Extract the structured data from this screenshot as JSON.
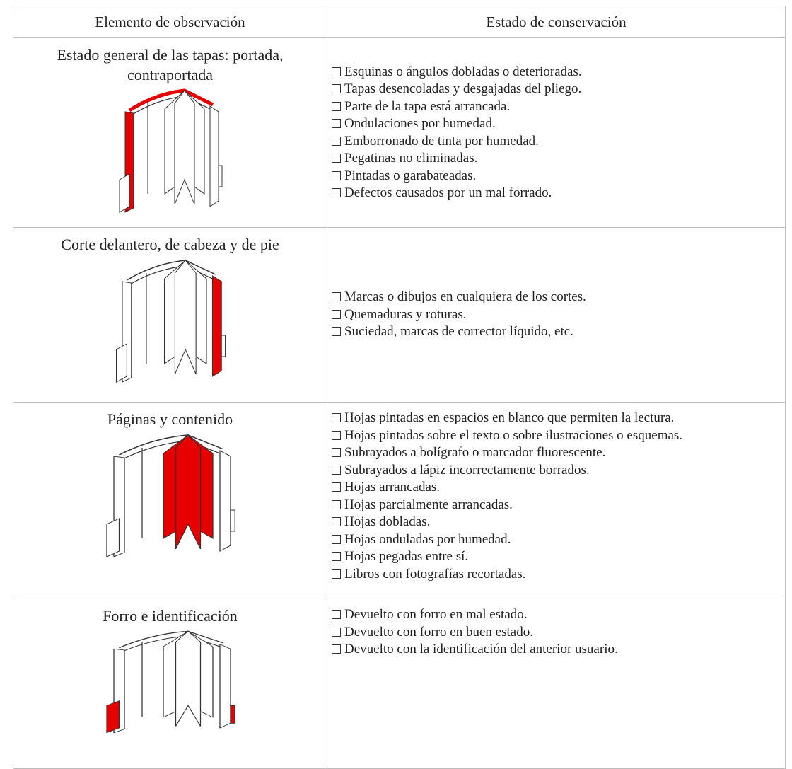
{
  "header": {
    "columns": [
      "Elemento de observación",
      "Estado de conservación"
    ]
  },
  "rows": [
    {
      "element": "Estado general de las tapas: portada, contraportada",
      "items": [
        "Esquinas o ángulos dobladas o deterioradas.",
        "Tapas desencoladas y desgajadas del pliego.",
        "Parte de la tapa está arrancada.",
        "Ondulaciones por humedad.",
        "Emborronado de tinta por humedad.",
        "Pegatinas no eliminadas.",
        "Pintadas o garabateadas.",
        "Defectos causados por un mal forrado."
      ]
    },
    {
      "element": "Corte delantero, de cabeza y de pie",
      "items": [
        "Marcas o dibujos en cualquiera de los cortes.",
        "Quemaduras y roturas.",
        "Suciedad, marcas de corrector líquido, etc."
      ]
    },
    {
      "element": "Páginas y contenido",
      "items": [
        "Hojas pintadas en espacios en blanco que permiten la lectura.",
        "Hojas pintadas sobre el texto o sobre ilustraciones o esquemas.",
        "Subrayados a bolígrafo o marcador fluorescente.",
        "Subrayados a lápiz incorrectamente borrados.",
        "Hojas arrancadas.",
        "Hojas parcialmente arrancadas.",
        "Hojas dobladas.",
        "Hojas onduladas por humedad.",
        "Hojas pegadas entre sí.",
        "Libros con fotografías recortadas."
      ]
    },
    {
      "element": "Forro e identificación",
      "items": [
        "Devuelto con forro en mal estado.",
        "Devuelto con forro en buen estado.",
        "Devuelto con la identificación del anterior usuario."
      ]
    }
  ]
}
